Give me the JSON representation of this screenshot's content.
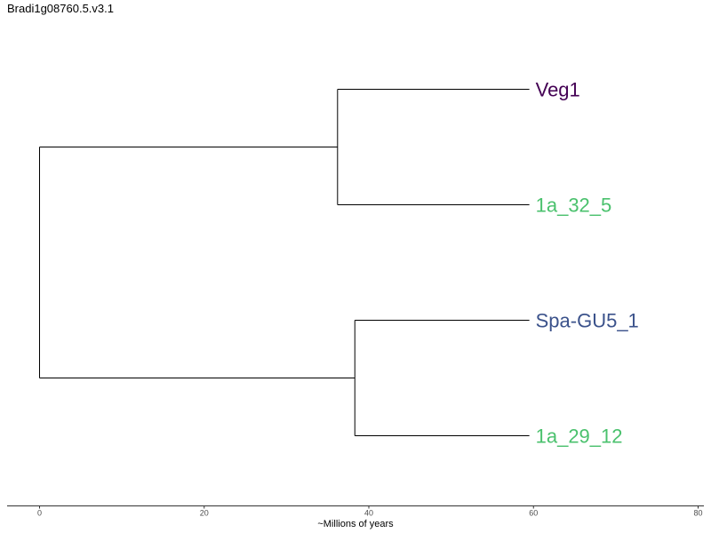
{
  "title": "Bradi1g08760.5.v3.1",
  "axis": {
    "label": "~Millions of years",
    "min": 0,
    "max": 80,
    "ticks": [
      0,
      20,
      40,
      60,
      80
    ]
  },
  "chart_data": {
    "type": "phylogenetic_tree",
    "tips": [
      {
        "name": "Veg1",
        "color": "#440154"
      },
      {
        "name": "1a_32_5",
        "color": "#4ac16d"
      },
      {
        "name": "Spa-GU5_1",
        "color": "#3b528b"
      },
      {
        "name": "1a_29_12",
        "color": "#4ac16d"
      }
    ],
    "tip_time": 59.5,
    "internal_nodes": [
      {
        "children": [
          "Veg1",
          "1a_32_5"
        ],
        "time": 36.2
      },
      {
        "children": [
          "Spa-GU5_1",
          "1a_29_12"
        ],
        "time": 38.3
      }
    ],
    "root_time": 0
  }
}
